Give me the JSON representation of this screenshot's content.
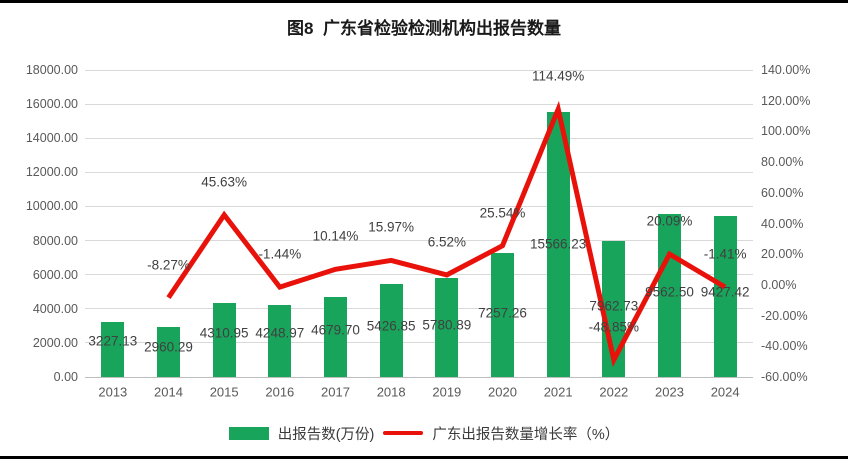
{
  "title": "图8  广东省检验检测机构出报告数量",
  "chart_data": {
    "type": "bar+line",
    "categories": [
      "2013",
      "2014",
      "2015",
      "2016",
      "2017",
      "2018",
      "2019",
      "2020",
      "2021",
      "2022",
      "2023",
      "2024"
    ],
    "series": [
      {
        "name": "出报告数(万份)",
        "type": "bar",
        "axis": "left",
        "values": [
          3227.13,
          2960.29,
          4310.95,
          4248.97,
          4679.7,
          5426.85,
          5780.89,
          7257.26,
          15566.23,
          7962.73,
          9562.5,
          9427.42
        ]
      },
      {
        "name": "广东出报告数量增长率（%）",
        "type": "line",
        "axis": "right",
        "values": [
          null,
          -8.27,
          45.63,
          -1.44,
          10.14,
          15.97,
          6.52,
          25.54,
          114.49,
          -48.85,
          20.09,
          -1.41
        ]
      }
    ],
    "left_axis": {
      "min": 0,
      "max": 18000,
      "step": 2000,
      "format": "0.00"
    },
    "right_axis": {
      "min": -60,
      "max": 140,
      "step": 20,
      "format": "0.00%"
    },
    "grid": true,
    "legend_position": "bottom",
    "data_labels": true
  },
  "legend": {
    "bar_label": "出报告数(万份)",
    "line_label": "广东出报告数量增长率（%）"
  },
  "colors": {
    "bar": "#18a45a",
    "line": "#e8120b",
    "grid": "#d9d9d9",
    "axis_line": "#bfbfbf",
    "axis_text": "#595959",
    "label_text": "#404040",
    "title_text": "#1a1a1a",
    "border": "#000000"
  }
}
